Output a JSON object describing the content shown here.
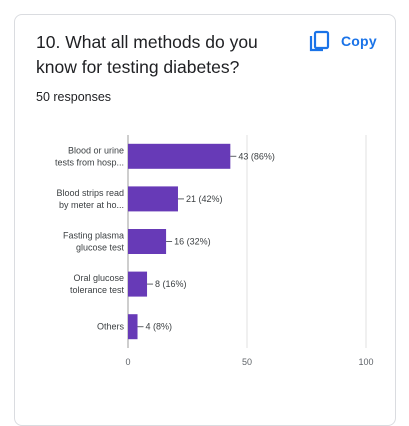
{
  "question": {
    "title": "10. What all methods do you know for testing diabetes?",
    "responses": "50 responses"
  },
  "toolbar": {
    "copy_label": "Copy",
    "copy_icon": "copy-icon"
  },
  "colors": {
    "bar": "#673ab7",
    "accent": "#1a73e8",
    "gridline": "#e0e0e0"
  },
  "chart_data": {
    "type": "bar",
    "orientation": "horizontal",
    "categories": [
      [
        "Blood or urine",
        "tests from hosp..."
      ],
      [
        "Blood strips read",
        "by meter at ho..."
      ],
      [
        "Fasting plasma",
        "glucose test"
      ],
      [
        "Oral glucose",
        "tolerance test"
      ],
      [
        "Others"
      ]
    ],
    "values": [
      43,
      21,
      16,
      8,
      4
    ],
    "data_labels": [
      "43 (86%)",
      "21 (42%)",
      "16 (32%)",
      "8 (16%)",
      "4 (8%)"
    ],
    "xlim": [
      0,
      100
    ],
    "xticks": [
      0,
      50,
      100
    ],
    "grid": true
  }
}
